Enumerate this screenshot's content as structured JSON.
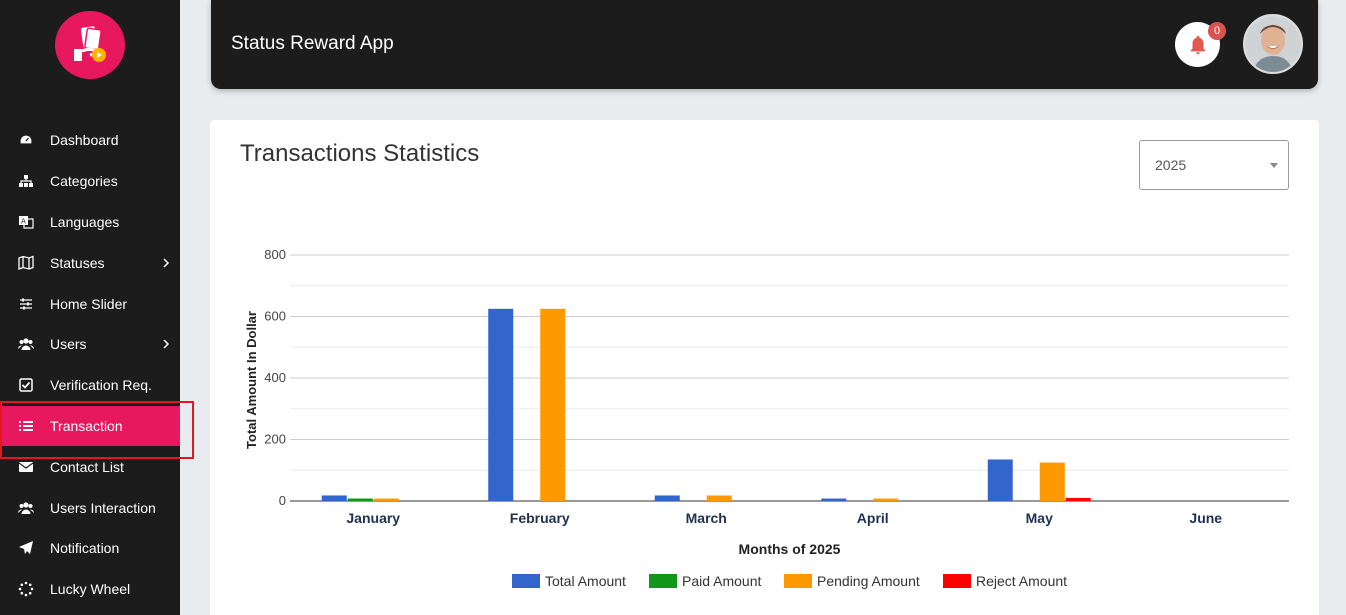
{
  "header": {
    "title": "Status Reward App",
    "notification_count": "0"
  },
  "sidebar": {
    "items": [
      {
        "label": "Dashboard",
        "icon": "dashboard-icon",
        "chevron": false,
        "active": false
      },
      {
        "label": "Categories",
        "icon": "sitemap-icon",
        "chevron": false,
        "active": false
      },
      {
        "label": "Languages",
        "icon": "language-icon",
        "chevron": false,
        "active": false
      },
      {
        "label": "Statuses",
        "icon": "map-icon",
        "chevron": true,
        "active": false
      },
      {
        "label": "Home Slider",
        "icon": "sliders-icon",
        "chevron": false,
        "active": false
      },
      {
        "label": "Users",
        "icon": "users-icon",
        "chevron": true,
        "active": false
      },
      {
        "label": "Verification Req.",
        "icon": "check-square-icon",
        "chevron": false,
        "active": false
      },
      {
        "label": "Transaction",
        "icon": "list-icon",
        "chevron": false,
        "active": true
      },
      {
        "label": "Contact List",
        "icon": "envelope-icon",
        "chevron": false,
        "active": false
      },
      {
        "label": "Users Interaction",
        "icon": "users-icon",
        "chevron": false,
        "active": false
      },
      {
        "label": "Notification",
        "icon": "paper-plane-icon",
        "chevron": false,
        "active": false
      },
      {
        "label": "Lucky Wheel",
        "icon": "spinner-icon",
        "chevron": false,
        "active": false
      }
    ]
  },
  "card": {
    "title": "Transactions Statistics",
    "year_select": "2025"
  },
  "colors": {
    "accent": "#e8185f",
    "dark": "#1c1c1c"
  },
  "chart_data": {
    "type": "bar",
    "categories": [
      "January",
      "February",
      "March",
      "April",
      "May",
      "June"
    ],
    "series": [
      {
        "name": "Total Amount",
        "color": "#3366cc",
        "values": [
          18,
          625,
          18,
          8,
          135,
          0
        ]
      },
      {
        "name": "Paid Amount",
        "color": "#109618",
        "values": [
          8,
          0,
          0,
          0,
          0,
          0
        ]
      },
      {
        "name": "Pending Amount",
        "color": "#ff9900",
        "values": [
          8,
          625,
          18,
          8,
          125,
          0
        ]
      },
      {
        "name": "Reject Amount",
        "color": "#ff0000",
        "values": [
          0,
          0,
          0,
          0,
          10,
          0
        ]
      }
    ],
    "xlabel": "Months of 2025",
    "ylabel": "Total Amount In Dollar",
    "ylim": [
      0,
      800
    ],
    "yticks": [
      0,
      200,
      400,
      600,
      800
    ],
    "grid": true,
    "legend": "bottom"
  }
}
